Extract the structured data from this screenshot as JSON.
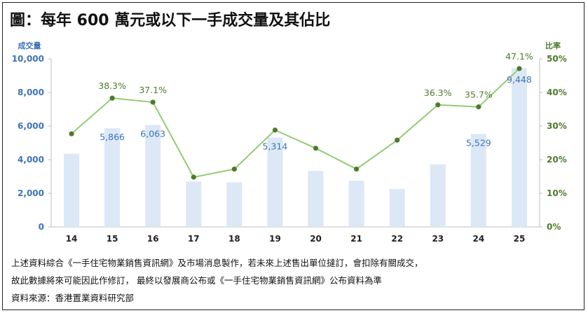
{
  "title": "圖：每年 600 萬元或以下一手成交量及其佔比",
  "notes": [
    "上述資料綜合《一手住宅物業銷售資訊網》及市場消息製作，若未來上述售出單位撻訂，會扣除有關成交，",
    "故此數據將來可能因此作修訂，  最終以發展商公布或《一手住宅物業銷售資訊網》公布資料為準",
    "資料來源：香港置業資料研究部"
  ],
  "colors": {
    "bar": "#dce8f6",
    "line": "#93cc73",
    "marker": "#4e7a2c",
    "axis_left": "#3f73b8",
    "axis_right": "#4e7a2c",
    "bar_label": "#3f73b8",
    "line_label": "#4e7a2c"
  },
  "chart_data": {
    "type": "bar",
    "categories": [
      "14",
      "15",
      "16",
      "17",
      "18",
      "19",
      "20",
      "21",
      "22",
      "23",
      "24",
      "25"
    ],
    "ylabel": "成交量",
    "y2label": "比率",
    "ylim": [
      0,
      10000
    ],
    "y2lim": [
      0,
      50
    ],
    "yticks": [
      "0",
      "2,000",
      "4,000",
      "6,000",
      "8,000",
      "10,000"
    ],
    "y2ticks": [
      "0%",
      "10%",
      "20%",
      "30%",
      "40%",
      "50%"
    ],
    "grid": false,
    "series": [
      {
        "type": "bar",
        "axis": "left",
        "values": [
          4350,
          5866,
          6063,
          2700,
          2650,
          5314,
          3330,
          2750,
          2250,
          3720,
          5529,
          9448
        ],
        "labels": [
          "",
          "5,866",
          "6,063",
          "",
          "",
          "5,314",
          "",
          "",
          "",
          "",
          "5,529",
          "9,448"
        ]
      },
      {
        "type": "line",
        "axis": "right",
        "values": [
          27.7,
          38.3,
          37.1,
          14.8,
          17.2,
          28.8,
          23.4,
          17.2,
          25.8,
          36.3,
          35.7,
          47.1
        ],
        "labels": [
          "",
          "38.3%",
          "37.1%",
          "",
          "",
          "",
          "",
          "",
          "",
          "36.3%",
          "35.7%",
          "47.1%"
        ]
      }
    ]
  }
}
